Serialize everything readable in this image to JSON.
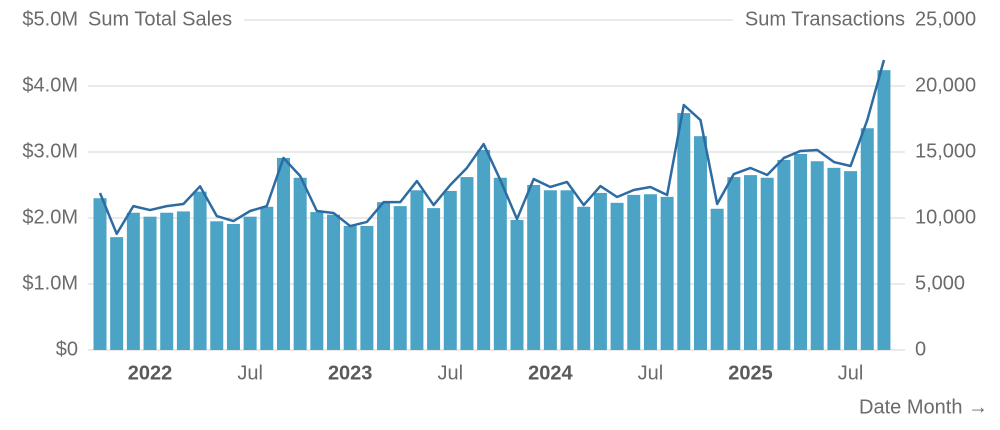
{
  "chart_data": {
    "type": "bar-line",
    "y_title": "Sum Total Sales",
    "y2_title": "Sum Transactions",
    "x_title": "Date Month →",
    "categories": [
      null,
      null,
      null,
      "2022",
      null,
      null,
      null,
      null,
      null,
      "Jul",
      null,
      null,
      null,
      null,
      null,
      "2023",
      null,
      null,
      null,
      null,
      null,
      "Jul",
      null,
      null,
      null,
      null,
      null,
      "2024",
      null,
      null,
      null,
      null,
      null,
      "Jul",
      null,
      null,
      null,
      null,
      null,
      "2025",
      null,
      null,
      null,
      null,
      null,
      "Jul",
      null,
      null
    ],
    "series": [
      {
        "name": "Sum Total Sales",
        "type": "bar",
        "color": "#4ba3c5",
        "values": [
          2300000,
          1710000,
          2080000,
          2020000,
          2080000,
          2100000,
          2400000,
          1950000,
          1910000,
          2020000,
          2170000,
          2910000,
          2610000,
          2090000,
          2050000,
          1880000,
          1880000,
          2240000,
          2180000,
          2420000,
          2150000,
          2410000,
          2620000,
          3030000,
          2610000,
          1970000,
          2500000,
          2420000,
          2420000,
          2170000,
          2380000,
          2230000,
          2350000,
          2360000,
          2320000,
          3590000,
          3240000,
          2140000,
          2620000,
          2650000,
          2610000,
          2880000,
          2970000,
          2860000,
          2760000,
          2710000,
          3360000,
          4240000
        ]
      },
      {
        "name": "Sum Transactions",
        "type": "line",
        "axis": "y2",
        "color": "#2d6ca3",
        "values": [
          11900,
          8800,
          10900,
          10600,
          10900,
          11060,
          12400,
          10150,
          9770,
          10530,
          10900,
          14550,
          13180,
          10530,
          10380,
          9390,
          9700,
          11200,
          11200,
          12800,
          10980,
          12500,
          13800,
          15600,
          12880,
          9920,
          12950,
          12350,
          12730,
          10980,
          12420,
          11590,
          12120,
          12350,
          11740,
          18560,
          17420,
          11060,
          13330,
          13790,
          13260,
          14550,
          15080,
          15150,
          14240,
          13940,
          17420,
          21970
        ]
      }
    ],
    "ylim": [
      0,
      5000000
    ],
    "yticks": [
      {
        "value": 0,
        "label": "$0"
      },
      {
        "value": 1000000,
        "label": "$1.0M"
      },
      {
        "value": 2000000,
        "label": "$2.0M"
      },
      {
        "value": 3000000,
        "label": "$3.0M"
      },
      {
        "value": 4000000,
        "label": "$4.0M"
      },
      {
        "value": 5000000,
        "label": "$5.0M"
      }
    ],
    "y2lim": [
      0,
      25000
    ],
    "y2ticks": [
      0,
      {
        "value": 5000,
        "label": "5,000"
      },
      {
        "value": 10000,
        "label": "10,000"
      },
      {
        "value": 15000,
        "label": "15,000"
      },
      {
        "value": 20000,
        "label": "20,000"
      },
      {
        "value": 25000,
        "label": "25,000"
      }
    ],
    "grid": true
  }
}
